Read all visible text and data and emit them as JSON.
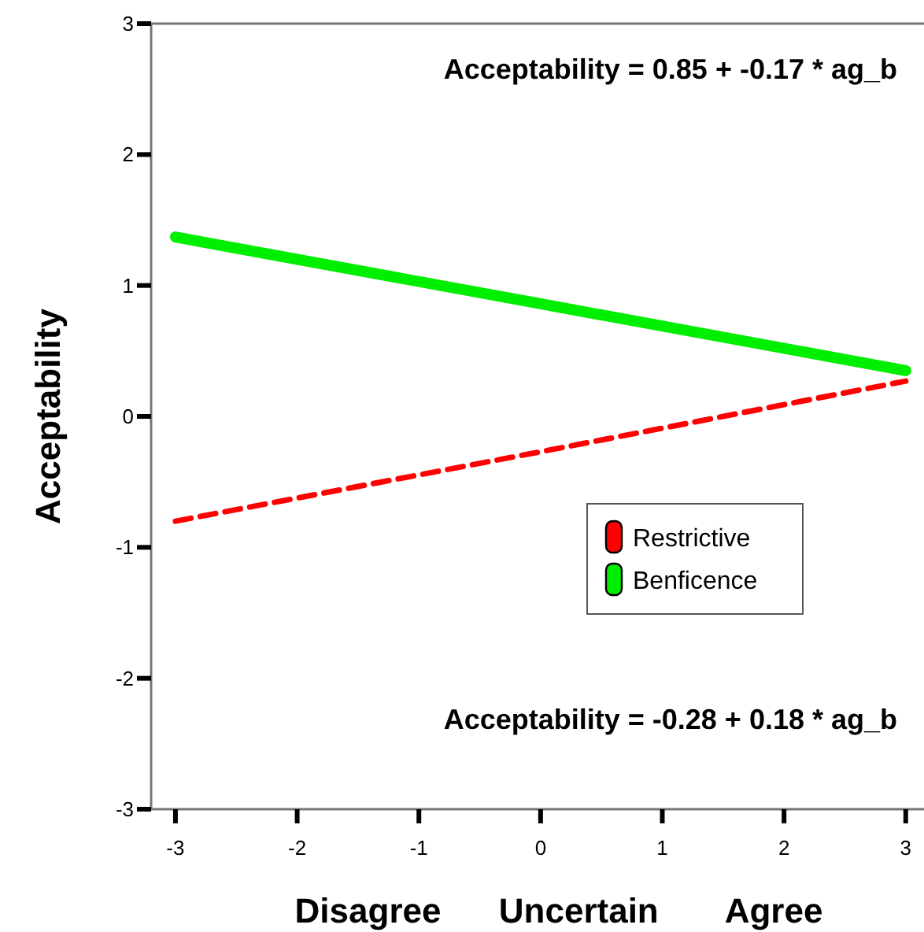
{
  "chart_data": {
    "type": "line",
    "xlabel": "Disagree      Uncertain       Agree",
    "ylabel": "Acceptability",
    "x": [
      -3,
      0,
      3
    ],
    "series": [
      {
        "name": "Restrictive",
        "color": "#ff0000",
        "values": [
          -0.8,
          -0.27,
          0.27
        ],
        "line_style": "dashed"
      },
      {
        "name": "Benficence",
        "color": "#00ee00",
        "values": [
          1.37,
          0.86,
          0.35
        ],
        "line_style": "solid"
      }
    ],
    "xlim": [
      -3.2,
      3.15
    ],
    "xticks": [
      -3,
      -2,
      -1,
      0,
      1,
      2,
      3
    ],
    "ylim": [
      -3,
      3
    ],
    "yticks": [
      -3,
      -2,
      -1,
      0,
      1,
      2,
      3
    ],
    "annotations": [
      "Acceptability = 0.85 + -0.17 * ag_b",
      "Acceptability = -0.28 + 0.18 * ag_b"
    ],
    "legend": "right",
    "grid": false,
    "marker": "none"
  }
}
